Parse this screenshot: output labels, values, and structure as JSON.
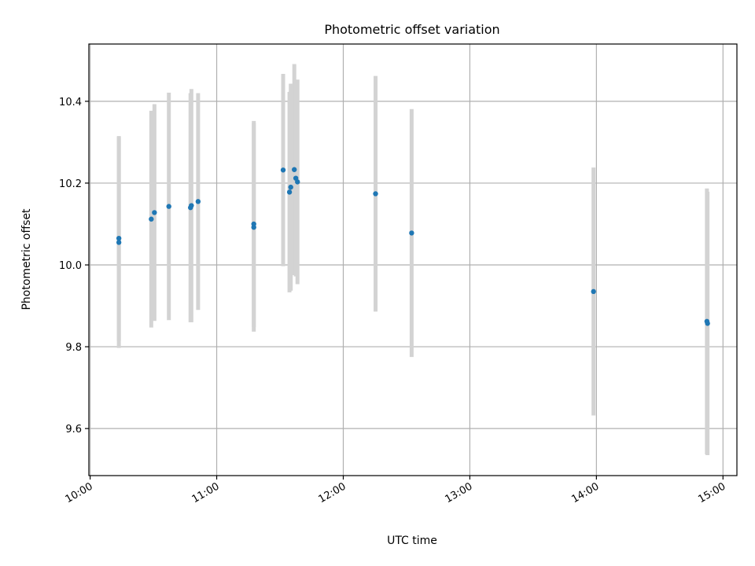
{
  "chart_data": {
    "type": "scatter",
    "title": "Photometric offset variation",
    "xlabel": "UTC time",
    "ylabel": "Photometric offset",
    "x_unit": "UTC time (hours)",
    "xlim": [
      9.99,
      15.11
    ],
    "ylim": [
      9.485,
      10.54
    ],
    "x_ticks": [
      10,
      11,
      12,
      13,
      14,
      15
    ],
    "x_tick_labels": [
      "10:00",
      "11:00",
      "12:00",
      "13:00",
      "14:00",
      "15:00"
    ],
    "y_ticks": [
      9.6,
      9.8,
      10.0,
      10.2,
      10.4
    ],
    "y_tick_labels": [
      "9.6",
      "9.8",
      "10.0",
      "10.2",
      "10.4"
    ],
    "grid": true,
    "colors": {
      "marker": "#1f77b4",
      "errorbar": "#d3d3d3",
      "grid": "#b0b0b0"
    },
    "points": [
      {
        "x": 10.227,
        "y": 10.065,
        "yerr": 0.25
      },
      {
        "x": 10.227,
        "y": 10.055,
        "yerr": 0.258
      },
      {
        "x": 10.483,
        "y": 10.112,
        "yerr": 0.265
      },
      {
        "x": 10.508,
        "y": 10.128,
        "yerr": 0.265
      },
      {
        "x": 10.622,
        "y": 10.143,
        "yerr": 0.278
      },
      {
        "x": 10.793,
        "y": 10.14,
        "yerr": 0.28
      },
      {
        "x": 10.8,
        "y": 10.145,
        "yerr": 0.285
      },
      {
        "x": 10.853,
        "y": 10.155,
        "yerr": 0.265
      },
      {
        "x": 11.293,
        "y": 10.092,
        "yerr": 0.255
      },
      {
        "x": 11.293,
        "y": 10.1,
        "yerr": 0.252
      },
      {
        "x": 11.525,
        "y": 10.232,
        "yerr": 0.235
      },
      {
        "x": 11.575,
        "y": 10.178,
        "yerr": 0.245
      },
      {
        "x": 11.585,
        "y": 10.19,
        "yerr": 0.253
      },
      {
        "x": 11.613,
        "y": 10.233,
        "yerr": 0.258
      },
      {
        "x": 11.625,
        "y": 10.212,
        "yerr": 0.24
      },
      {
        "x": 11.638,
        "y": 10.203,
        "yerr": 0.25
      },
      {
        "x": 12.255,
        "y": 10.174,
        "yerr": 0.288
      },
      {
        "x": 12.54,
        "y": 10.078,
        "yerr": 0.303
      },
      {
        "x": 13.977,
        "y": 9.935,
        "yerr": 0.303
      },
      {
        "x": 14.873,
        "y": 9.862,
        "yerr": 0.325
      },
      {
        "x": 14.878,
        "y": 9.857,
        "yerr": 0.322
      }
    ]
  }
}
